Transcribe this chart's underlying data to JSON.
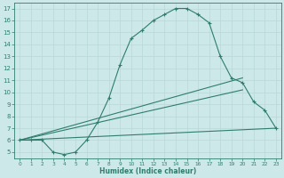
{
  "xlabel": "Humidex (Indice chaleur)",
  "bg_color": "#cde8e8",
  "line_color": "#2e7d6e",
  "xlim": [
    -0.5,
    23.5
  ],
  "ylim": [
    4.5,
    17.5
  ],
  "xticks": [
    0,
    1,
    2,
    3,
    4,
    5,
    6,
    7,
    8,
    9,
    10,
    11,
    12,
    13,
    14,
    15,
    16,
    17,
    18,
    19,
    20,
    21,
    22,
    23
  ],
  "yticks": [
    5,
    6,
    7,
    8,
    9,
    10,
    11,
    12,
    13,
    14,
    15,
    16,
    17
  ],
  "curve_x": [
    0,
    1,
    2,
    3,
    4,
    5,
    6,
    7,
    8,
    9,
    10,
    11,
    12,
    13,
    14,
    15,
    16,
    17,
    18,
    19,
    20,
    21,
    22,
    23
  ],
  "curve_y": [
    6,
    6,
    6,
    5,
    4.8,
    5,
    6,
    7.5,
    9.5,
    12.3,
    14.5,
    15.2,
    16.0,
    16.5,
    17.0,
    17.0,
    16.5,
    15.8,
    13.0,
    11.2,
    10.8,
    9.2,
    8.5,
    7.0
  ],
  "line2_x": [
    0,
    20
  ],
  "line2_y": [
    6,
    11.2
  ],
  "line3_x": [
    0,
    20
  ],
  "line3_y": [
    6,
    10.2
  ],
  "line4_x": [
    0,
    23
  ],
  "line4_y": [
    6,
    7.0
  ]
}
